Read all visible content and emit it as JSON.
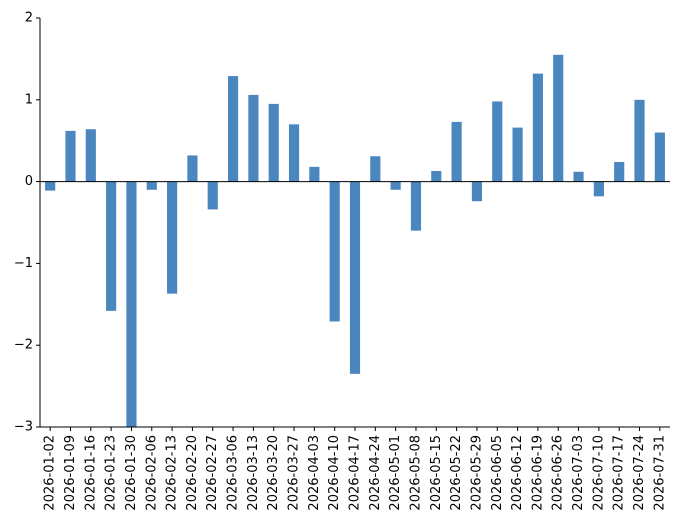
{
  "chart_data": {
    "type": "bar",
    "categories": [
      "2026-01-02",
      "2026-01-09",
      "2026-01-16",
      "2026-01-23",
      "2026-01-30",
      "2026-02-06",
      "2026-02-13",
      "2026-02-20",
      "2026-02-27",
      "2026-03-06",
      "2026-03-13",
      "2026-03-20",
      "2026-03-27",
      "2026-04-03",
      "2026-04-10",
      "2026-04-17",
      "2026-04-24",
      "2026-05-01",
      "2026-05-08",
      "2026-05-15",
      "2026-05-22",
      "2026-05-29",
      "2026-06-05",
      "2026-06-12",
      "2026-06-19",
      "2026-06-26",
      "2026-07-03",
      "2026-07-10",
      "2026-07-17",
      "2026-07-24",
      "2026-07-31"
    ],
    "values": [
      -0.11,
      0.62,
      0.64,
      -1.58,
      -3.0,
      -0.1,
      -1.37,
      0.32,
      -0.34,
      1.29,
      1.06,
      0.95,
      0.7,
      0.18,
      -1.71,
      -2.35,
      0.31,
      -0.1,
      -0.6,
      0.13,
      0.73,
      -0.24,
      0.98,
      0.66,
      1.32,
      1.55,
      0.12,
      -0.18,
      0.24,
      1.0,
      0.6
    ],
    "color": "#4b87bf",
    "ylim": [
      -3,
      2
    ],
    "yticks": [
      {
        "value": -3,
        "label": "−3"
      },
      {
        "value": -2,
        "label": "−2"
      },
      {
        "value": -1,
        "label": "−1"
      },
      0,
      1,
      2
    ]
  }
}
